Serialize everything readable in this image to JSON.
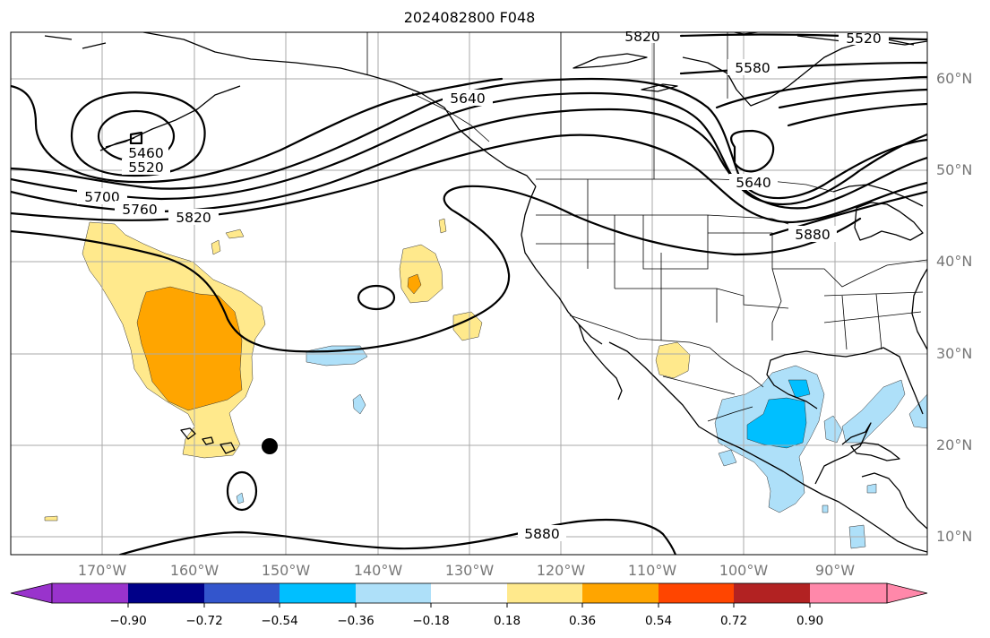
{
  "title": "2024082800 F048",
  "colors": {
    "grid": "#aaaaaa",
    "coast": "#000000",
    "contour": "#000000",
    "light_yellow": "#ffe98c",
    "orange": "#ffa500",
    "light_blue": "#aee0f9",
    "cyan": "#00bfff",
    "low_center_marker": "#000000"
  },
  "map": {
    "lat_labels": [
      "60°N",
      "50°N",
      "40°N",
      "30°N",
      "20°N",
      "10°N"
    ],
    "lon_labels": [
      "170°W",
      "160°W",
      "150°W",
      "140°W",
      "130°W",
      "120°W",
      "110°W",
      "100°W",
      "90°W"
    ],
    "contour_labels": [
      "5460",
      "5520",
      "5700",
      "5760",
      "5820",
      "5640",
      "5580",
      "5520",
      "5640",
      "5880",
      "5880",
      "5820"
    ]
  },
  "colorbar": {
    "colors": [
      "#9933cc",
      "#000088",
      "#3355cc",
      "#00bfff",
      "#aee0f9",
      "#ffffff",
      "#ffe98c",
      "#ffa500",
      "#ff4500",
      "#b22222",
      "#ff88aa"
    ],
    "tick_labels": [
      "−0.90",
      "−0.72",
      "−0.54",
      "−0.36",
      "−0.18",
      "0.18",
      "0.36",
      "0.54",
      "0.72",
      "0.90"
    ]
  }
}
